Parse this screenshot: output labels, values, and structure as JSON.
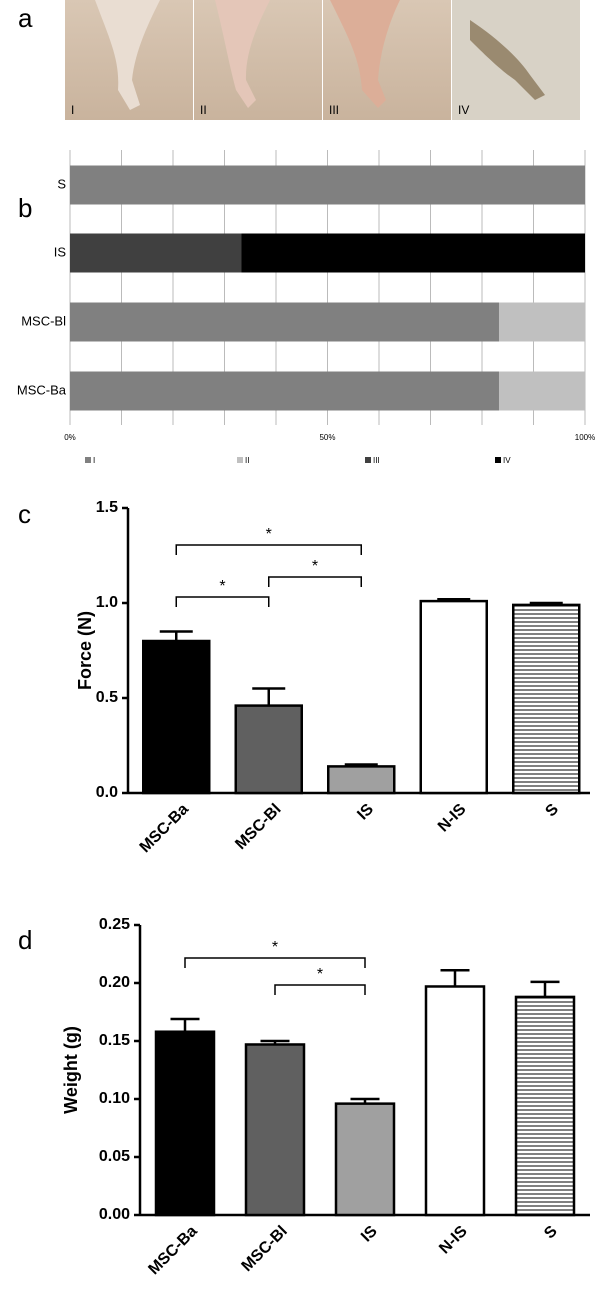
{
  "panel_labels": [
    "a",
    "b",
    "c",
    "d"
  ],
  "photos": {
    "labels": [
      "I",
      "II",
      "III",
      "IV"
    ]
  },
  "chart_data": [
    {
      "type": "stacked-hbar",
      "categories": [
        "S",
        "IS",
        "MSC-Bl",
        "MSC-Ba"
      ],
      "series": [
        {
          "name": "I",
          "color": "#808080",
          "values": [
            100,
            0,
            83.3,
            83.3
          ]
        },
        {
          "name": "II",
          "color": "#c0c0c0",
          "values": [
            0,
            0,
            16.7,
            16.7
          ]
        },
        {
          "name": "III",
          "color": "#404040",
          "values": [
            0,
            33.3,
            0,
            0
          ]
        },
        {
          "name": "IV",
          "color": "#000000",
          "values": [
            0,
            66.7,
            0,
            0
          ]
        }
      ],
      "xlim": [
        0,
        100
      ],
      "xticks": [
        {
          "value": 0,
          "label": "0%"
        },
        {
          "value": 50,
          "label": "50%"
        },
        {
          "value": 100,
          "label": "100%"
        }
      ],
      "minor_xticks": [
        10,
        20,
        30,
        40,
        60,
        70,
        80,
        90
      ],
      "grid": true,
      "legend": "bottom"
    },
    {
      "type": "bar",
      "ylabel": "Force (N)",
      "categories": [
        "MSC-Ba",
        "MSC-Bl",
        "IS",
        "N-IS",
        "S"
      ],
      "values": [
        0.8,
        0.46,
        0.14,
        1.01,
        0.99
      ],
      "errors": [
        0.05,
        0.09,
        0.01,
        0.01,
        0.01
      ],
      "colors": [
        "#000000",
        "#606060",
        "#a0a0a0",
        "#ffffff",
        "#ffffff"
      ],
      "hatch": [
        false,
        false,
        false,
        false,
        true
      ],
      "ylim": [
        0,
        1.5
      ],
      "yticks": [
        {
          "value": 0,
          "label": "0.0"
        },
        {
          "value": 0.5,
          "label": "0.5"
        },
        {
          "value": 1.0,
          "label": "1.0"
        },
        {
          "value": 1.5,
          "label": "1.5"
        }
      ],
      "annotations": [
        {
          "text": "*",
          "between": [
            "MSC-Ba",
            "IS"
          ]
        },
        {
          "text": "*",
          "between": [
            "MSC-Ba",
            "MSC-Bl"
          ]
        },
        {
          "text": "*",
          "between": [
            "MSC-Bl",
            "IS"
          ]
        }
      ]
    },
    {
      "type": "bar",
      "ylabel": "Weight (g)",
      "categories": [
        "MSC-Ba",
        "MSC-Bl",
        "IS",
        "N-IS",
        "S"
      ],
      "values": [
        0.158,
        0.147,
        0.096,
        0.197,
        0.188
      ],
      "errors": [
        0.011,
        0.003,
        0.004,
        0.014,
        0.013
      ],
      "colors": [
        "#000000",
        "#606060",
        "#a0a0a0",
        "#ffffff",
        "#ffffff"
      ],
      "hatch": [
        false,
        false,
        false,
        false,
        true
      ],
      "ylim": [
        0,
        0.25
      ],
      "yticks": [
        {
          "value": 0,
          "label": "0.00"
        },
        {
          "value": 0.05,
          "label": "0.05"
        },
        {
          "value": 0.1,
          "label": "0.10"
        },
        {
          "value": 0.15,
          "label": "0.15"
        },
        {
          "value": 0.2,
          "label": "0.20"
        },
        {
          "value": 0.25,
          "label": "0.25"
        }
      ],
      "annotations": [
        {
          "text": "*",
          "between": [
            "MSC-Ba",
            "IS"
          ]
        },
        {
          "text": "*",
          "between": [
            "MSC-Bl",
            "IS"
          ]
        }
      ]
    }
  ]
}
